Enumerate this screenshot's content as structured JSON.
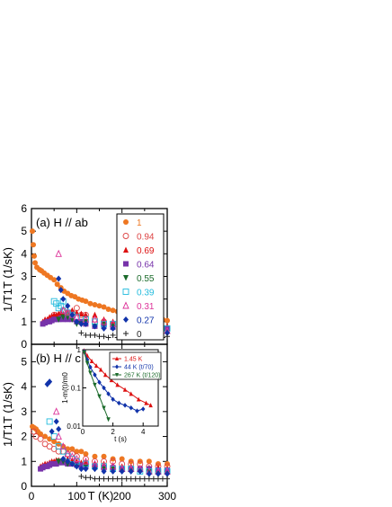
{
  "chart_data": [
    {
      "type": "scatter",
      "panel_label": "(a) H // ab",
      "xlim": [
        0,
        300
      ],
      "ylim": [
        0,
        6
      ],
      "yticks": [
        0,
        1,
        2,
        3,
        4,
        5,
        6
      ],
      "ylabel": "1/T1T (1/sK)",
      "legend_position": "top-right",
      "series": [
        {
          "name": "1",
          "color": "#ee7722",
          "marker": "circle",
          "x": [
            2,
            4,
            6,
            8,
            12,
            18,
            22,
            28,
            35,
            42,
            50,
            57,
            65,
            72,
            80,
            88,
            96,
            104,
            112,
            120,
            130,
            140,
            150,
            160,
            170,
            180,
            190,
            200,
            210,
            220,
            230,
            240,
            250,
            260,
            270,
            280,
            290,
            300
          ],
          "y": [
            5.0,
            4.4,
            3.9,
            3.6,
            3.4,
            3.3,
            3.25,
            3.15,
            3.05,
            2.95,
            2.85,
            2.65,
            2.5,
            2.35,
            2.25,
            2.15,
            2.1,
            2.0,
            1.95,
            1.9,
            1.8,
            1.75,
            1.7,
            1.65,
            1.55,
            1.5,
            1.45,
            1.45,
            1.35,
            1.3,
            1.3,
            1.25,
            1.2,
            1.2,
            1.15,
            1.1,
            1.1,
            1.05
          ]
        },
        {
          "name": "0.94",
          "color": "#dd4444",
          "marker": "circle-open",
          "x": [
            40,
            50,
            60,
            70,
            80,
            90,
            100,
            110,
            120,
            140,
            160,
            180,
            200,
            220,
            240,
            260,
            280,
            300
          ],
          "y": [
            1.1,
            1.3,
            1.2,
            1.5,
            1.4,
            1.4,
            1.6,
            1.3,
            1.3,
            1.1,
            1.0,
            0.9,
            0.9,
            0.9,
            0.8,
            0.8,
            0.8,
            0.7
          ]
        },
        {
          "name": "0.69",
          "color": "#dd1111",
          "marker": "triangle",
          "x": [
            25,
            30,
            35,
            40,
            45,
            50,
            55,
            60,
            65,
            70,
            80,
            90,
            100,
            110,
            120,
            140,
            160,
            180,
            200,
            220,
            240,
            260,
            280,
            300
          ],
          "y": [
            1.0,
            1.1,
            1.1,
            1.2,
            1.25,
            1.3,
            1.3,
            1.35,
            1.4,
            1.35,
            1.45,
            1.5,
            1.4,
            1.35,
            1.3,
            1.3,
            1.1,
            1.0,
            0.9,
            0.9,
            0.85,
            0.85,
            0.8,
            0.8
          ]
        },
        {
          "name": "0.64",
          "color": "#7733aa",
          "marker": "square",
          "x": [
            25,
            30,
            35,
            40,
            45,
            50,
            55,
            60,
            65,
            70,
            80,
            90,
            100,
            110,
            120,
            140,
            160,
            180,
            200,
            220,
            240,
            260,
            280,
            300
          ],
          "y": [
            0.9,
            0.95,
            1.0,
            1.0,
            1.05,
            1.1,
            1.1,
            1.1,
            1.15,
            1.1,
            1.1,
            1.1,
            1.0,
            1.0,
            0.9,
            0.8,
            0.8,
            0.75,
            0.8,
            0.7,
            0.75,
            0.7,
            0.7,
            0.7
          ]
        },
        {
          "name": "0.55",
          "color": "#1a6a2a",
          "marker": "triangle-down",
          "x": [
            60,
            70,
            80,
            90,
            100,
            110,
            120,
            140,
            160,
            180,
            200,
            220,
            240,
            260,
            280,
            300
          ],
          "y": [
            1.1,
            1.2,
            1.2,
            1.1,
            0.9,
            0.9,
            1.0,
            0.8,
            0.9,
            0.8,
            0.7,
            0.6,
            0.6,
            0.6,
            0.6,
            0.5
          ]
        },
        {
          "name": "0.39",
          "color": "#22bbdd",
          "marker": "square-open",
          "x": [
            50,
            55,
            60,
            65,
            70,
            75,
            80,
            90,
            100,
            120,
            140,
            160,
            180,
            200,
            220,
            240,
            260,
            280,
            300
          ],
          "y": [
            1.9,
            1.8,
            1.6,
            1.7,
            1.9,
            1.5,
            1.4,
            1.3,
            1.2,
            1.1,
            1.0,
            0.9,
            0.9,
            0.8,
            0.7,
            0.8,
            0.7,
            0.7,
            0.7
          ]
        },
        {
          "name": "0.31",
          "color": "#dd3399",
          "marker": "triangle-open",
          "x": [
            60,
            70,
            80,
            90,
            100,
            120,
            140,
            160,
            180,
            200,
            220,
            240,
            260,
            280,
            300
          ],
          "y": [
            4.0,
            1.5,
            1.4,
            1.3,
            1.2,
            1.1,
            1.1,
            1.0,
            0.9,
            0.8,
            0.8,
            0.7,
            0.7,
            0.7,
            0.6
          ]
        },
        {
          "name": "0.27",
          "color": "#1133aa",
          "marker": "diamond",
          "x": [
            60,
            65,
            70,
            80,
            90,
            100,
            110,
            120,
            140,
            160,
            180,
            200,
            220,
            240,
            260,
            280,
            300
          ],
          "y": [
            2.9,
            2.4,
            2.0,
            1.7,
            1.3,
            1.0,
            0.9,
            0.9,
            0.8,
            0.7,
            0.7,
            0.7,
            0.6,
            0.6,
            0.6,
            0.5,
            0.5
          ]
        },
        {
          "name": "0",
          "color": "#222222",
          "marker": "plus",
          "x": [
            110,
            120,
            130,
            140,
            150,
            160,
            170,
            180,
            190,
            200,
            210,
            220,
            230,
            240,
            250,
            260,
            270,
            280,
            290,
            300
          ],
          "y": [
            0.5,
            0.4,
            0.4,
            0.4,
            0.35,
            0.35,
            0.3,
            0.4,
            0.3,
            0.35,
            0.3,
            0.3,
            0.35,
            0.3,
            0.3,
            0.35,
            0.3,
            0.3,
            0.3,
            0.35
          ]
        }
      ]
    },
    {
      "type": "scatter",
      "panel_label": "(b) H // c",
      "xlim": [
        0,
        300
      ],
      "ylim": [
        0,
        5.7
      ],
      "yticks": [
        0,
        1,
        2,
        3,
        4,
        5
      ],
      "xticks": [
        0,
        100,
        200,
        300
      ],
      "xlabel": "T (K)",
      "ylabel": "1/T1T (1/sK)",
      "series": [
        {
          "name": "1",
          "color": "#ee7722",
          "marker": "circle",
          "x": [
            2,
            6,
            10,
            14,
            20,
            30,
            40,
            50,
            60,
            70,
            80,
            90,
            100,
            110,
            120,
            140,
            160,
            180,
            200,
            220,
            240,
            260,
            280,
            300
          ],
          "y": [
            2.4,
            2.35,
            2.3,
            2.2,
            2.1,
            2.0,
            1.9,
            1.8,
            1.7,
            1.6,
            1.5,
            1.5,
            1.4,
            1.4,
            1.3,
            1.2,
            1.2,
            1.1,
            1.1,
            1.0,
            1.0,
            1.0,
            0.9,
            0.9
          ]
        },
        {
          "name": "0.94",
          "color": "#dd4444",
          "marker": "circle-open",
          "x": [
            5,
            10,
            20,
            30,
            40,
            50,
            60,
            70,
            80,
            90,
            100,
            120,
            140,
            160,
            180,
            200,
            220,
            240,
            260,
            280,
            300
          ],
          "y": [
            2.2,
            2.0,
            1.9,
            1.7,
            1.6,
            1.5,
            1.4,
            1.4,
            1.3,
            1.3,
            1.2,
            1.1,
            1.0,
            1.0,
            1.0,
            0.9,
            0.9,
            0.9,
            0.8,
            0.8,
            0.8
          ]
        },
        {
          "name": "0.69",
          "color": "#dd1111",
          "marker": "triangle",
          "x": [
            20,
            25,
            30,
            35,
            40,
            45,
            50,
            55,
            60,
            70,
            80,
            90,
            100,
            110,
            120,
            140,
            160,
            180,
            200,
            220,
            240,
            260,
            280,
            300
          ],
          "y": [
            0.8,
            0.85,
            0.9,
            0.9,
            0.95,
            1.0,
            1.0,
            1.05,
            1.05,
            1.1,
            1.1,
            1.05,
            1.0,
            0.95,
            0.95,
            0.9,
            0.9,
            0.85,
            0.8,
            0.8,
            0.75,
            0.75,
            0.75,
            0.7
          ]
        },
        {
          "name": "0.64",
          "color": "#7733aa",
          "marker": "square",
          "x": [
            20,
            25,
            30,
            35,
            40,
            45,
            50,
            55,
            60,
            70,
            80,
            90,
            100,
            110,
            120,
            140,
            160,
            180,
            200,
            220,
            240,
            260,
            280,
            300
          ],
          "y": [
            0.7,
            0.75,
            0.8,
            0.8,
            0.85,
            0.9,
            0.9,
            0.9,
            0.95,
            0.95,
            0.9,
            0.9,
            0.85,
            0.85,
            0.8,
            0.8,
            0.75,
            0.75,
            0.7,
            0.7,
            0.7,
            0.7,
            0.65,
            0.65
          ]
        },
        {
          "name": "0.55",
          "color": "#1a6a2a",
          "marker": "triangle-down",
          "x": [
            60,
            70,
            80,
            90,
            100,
            120,
            140,
            160,
            180,
            200,
            220,
            240,
            260,
            280,
            300
          ],
          "y": [
            1.0,
            1.0,
            0.9,
            0.9,
            0.8,
            0.8,
            0.7,
            0.7,
            0.7,
            0.6,
            0.6,
            0.6,
            0.6,
            0.5,
            0.5
          ]
        },
        {
          "name": "0.39",
          "color": "#22bbdd",
          "marker": "square-open",
          "x": [
            40,
            50,
            60,
            70,
            80,
            90,
            100,
            120,
            140,
            160,
            180,
            200,
            220,
            240,
            260,
            280,
            300
          ],
          "y": [
            2.6,
            2.0,
            1.6,
            1.4,
            1.2,
            1.1,
            1.0,
            0.9,
            0.8,
            0.8,
            0.7,
            0.7,
            0.7,
            0.6,
            0.6,
            0.6,
            0.6
          ]
        },
        {
          "name": "0.31",
          "color": "#dd3399",
          "marker": "triangle-open",
          "x": [
            55,
            60,
            70,
            80,
            90,
            100,
            120,
            140,
            160,
            180,
            200,
            220,
            240,
            260,
            280,
            300
          ],
          "y": [
            3.0,
            2.0,
            1.6,
            1.3,
            1.2,
            1.1,
            1.0,
            0.9,
            0.8,
            0.8,
            0.7,
            0.7,
            0.7,
            0.6,
            0.6,
            0.6
          ]
        },
        {
          "name": "0.27",
          "color": "#1133aa",
          "marker": "diamond",
          "x": [
            35,
            40,
            45,
            55,
            60,
            70,
            80,
            90,
            100,
            110,
            120,
            140,
            160,
            180,
            200,
            220,
            240,
            260,
            280,
            300
          ],
          "y": [
            4.1,
            4.2,
            2.2,
            2.6,
            2.3,
            1.1,
            1.0,
            0.9,
            0.8,
            0.7,
            0.7,
            0.7,
            0.6,
            0.6,
            0.6,
            0.6,
            0.6,
            0.5,
            0.5,
            0.5
          ]
        },
        {
          "name": "0",
          "color": "#222222",
          "marker": "plus",
          "x": [
            110,
            120,
            130,
            140,
            150,
            160,
            170,
            180,
            190,
            200,
            210,
            220,
            230,
            240,
            250,
            260,
            270,
            280,
            290,
            300
          ],
          "y": [
            0.4,
            0.35,
            0.35,
            0.3,
            0.3,
            0.3,
            0.3,
            0.3,
            0.3,
            0.3,
            0.3,
            0.3,
            0.3,
            0.3,
            0.3,
            0.3,
            0.3,
            0.3,
            0.3,
            0.3
          ]
        }
      ]
    },
    {
      "type": "scatter",
      "panel_label": "inset",
      "xlabel": "t (s)",
      "ylabel": "1-m(t)/m0",
      "xlim": [
        0,
        5
      ],
      "xticks": [
        0,
        2,
        4
      ],
      "yscale": "log",
      "ylim": [
        0.01,
        1
      ],
      "ytick_labels": [
        "1",
        "0.1",
        "0.01"
      ],
      "series": [
        {
          "name": "1.45 K",
          "color": "#dd1111",
          "marker": "triangle",
          "x": [
            0.1,
            0.3,
            0.6,
            0.9,
            1.2,
            1.5,
            1.9,
            2.3,
            2.8,
            3.2,
            3.7,
            4.2,
            4.5
          ],
          "y": [
            0.95,
            0.7,
            0.5,
            0.38,
            0.3,
            0.22,
            0.16,
            0.12,
            0.09,
            0.07,
            0.05,
            0.04,
            0.035
          ]
        },
        {
          "name": "44 K (t/70)",
          "color": "#1133aa",
          "marker": "diamond",
          "x": [
            0.1,
            0.3,
            0.5,
            0.8,
            1.1,
            1.4,
            1.7,
            2.0,
            2.4,
            2.8,
            3.2,
            3.6,
            4.0
          ],
          "y": [
            0.9,
            0.55,
            0.35,
            0.22,
            0.14,
            0.1,
            0.07,
            0.05,
            0.04,
            0.035,
            0.03,
            0.025,
            0.028
          ]
        },
        {
          "name": "267 K (t/120)",
          "color": "#1a6a2a",
          "marker": "triangle-down",
          "x": [
            0.1,
            0.3,
            0.5,
            0.8,
            1.1,
            1.4,
            1.7
          ],
          "y": [
            0.85,
            0.45,
            0.25,
            0.12,
            0.06,
            0.03,
            0.015
          ]
        }
      ]
    }
  ]
}
